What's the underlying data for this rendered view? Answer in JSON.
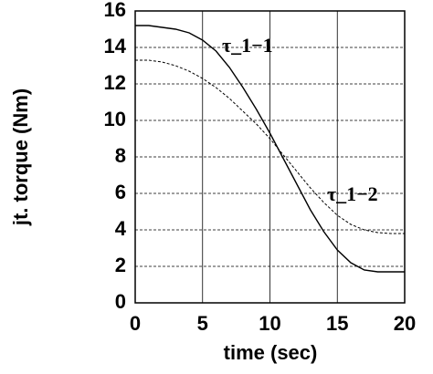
{
  "chart_data": {
    "type": "line",
    "xlabel": "time (sec)",
    "ylabel": "jt. torque (Nm)",
    "x": [
      0,
      1,
      2,
      3,
      4,
      5,
      6,
      7,
      8,
      9,
      10,
      11,
      12,
      13,
      14,
      15,
      16,
      17,
      18,
      19,
      20
    ],
    "series": [
      {
        "name": "τ_1−1",
        "color": "#000000",
        "dash": "none",
        "values": [
          15.2,
          15.2,
          15.1,
          15.0,
          14.8,
          14.4,
          13.8,
          12.9,
          11.8,
          10.6,
          9.3,
          7.9,
          6.5,
          5.1,
          3.9,
          2.9,
          2.2,
          1.8,
          1.7,
          1.7,
          1.7
        ]
      },
      {
        "name": "τ_1−2",
        "color": "#000000",
        "dash": "3,2",
        "values": [
          13.3,
          13.3,
          13.2,
          13.0,
          12.7,
          12.3,
          11.8,
          11.2,
          10.5,
          9.8,
          9.0,
          8.1,
          7.2,
          6.3,
          5.5,
          4.8,
          4.3,
          4.0,
          3.85,
          3.8,
          3.8
        ]
      }
    ],
    "xlim": [
      0,
      20
    ],
    "xticks": [
      0,
      5,
      10,
      15,
      20
    ],
    "ylim": [
      0,
      16
    ],
    "yticks": [
      0,
      2,
      4,
      6,
      8,
      10,
      12,
      14,
      16
    ],
    "grid": true
  }
}
